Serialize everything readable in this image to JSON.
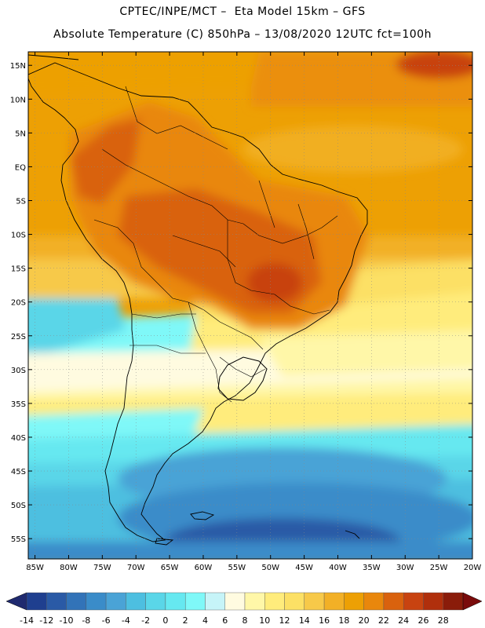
{
  "header": {
    "line1": "CPTEC/INPE/MCT –  Eta Model 15km – GFS",
    "line2": "Absolute Temperature (C) 850hPa – 13/08/2020 12UTC fct=100h"
  },
  "map": {
    "lat_labels": [
      "15N",
      "10N",
      "5N",
      "EQ",
      "5S",
      "10S",
      "15S",
      "20S",
      "25S",
      "30S",
      "35S",
      "40S",
      "45S",
      "50S",
      "55S"
    ],
    "lon_labels": [
      "85W",
      "80W",
      "75W",
      "70W",
      "65W",
      "60W",
      "55W",
      "50W",
      "45W",
      "40W",
      "35W",
      "30W",
      "25W",
      "20W"
    ],
    "lat_range": [
      17,
      -58
    ],
    "lon_range": [
      -86,
      -20
    ]
  },
  "colorbar": {
    "labels": [
      "-14",
      "-12",
      "-10",
      "-8",
      "-6",
      "-4",
      "-2",
      "0",
      "2",
      "4",
      "6",
      "8",
      "10",
      "12",
      "14",
      "16",
      "18",
      "20",
      "22",
      "24",
      "26",
      "28"
    ],
    "colors": [
      "#1f3f8f",
      "#2a5aa6",
      "#3273b8",
      "#3a8cc9",
      "#4aa3d6",
      "#4dbfe0",
      "#5ad6e8",
      "#66e8f0",
      "#7ff8f8",
      "#c6f4f8",
      "#fffbe0",
      "#fff7a8",
      "#ffec7c",
      "#fce065",
      "#f7c949",
      "#f2b026",
      "#eda004",
      "#e9870c",
      "#d9620e",
      "#c84310",
      "#b02f0c",
      "#8a1c0a"
    ],
    "end_left": "#1f2a6f",
    "end_right": "#7a0b0b"
  }
}
